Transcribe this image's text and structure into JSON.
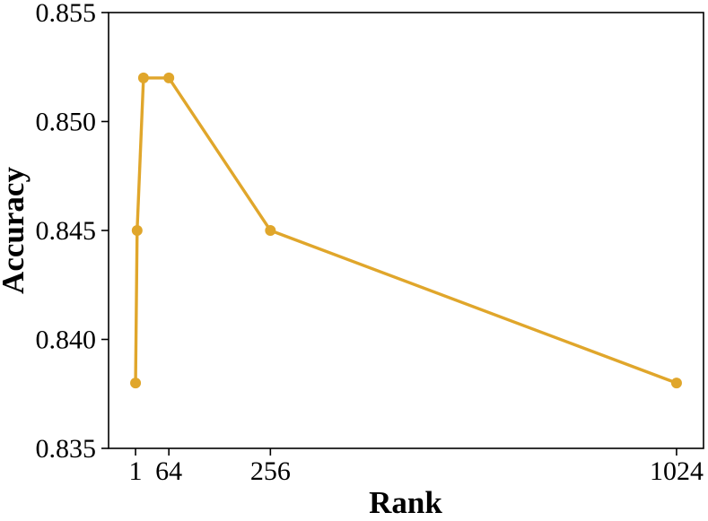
{
  "figure": {
    "background_color": "#ffffff",
    "frame_color": "#000000"
  },
  "chart_data": {
    "type": "line",
    "title": "",
    "xlabel": "Rank",
    "ylabel": "Accuracy",
    "x": [
      1,
      4,
      16,
      64,
      256,
      1024
    ],
    "y": [
      0.838,
      0.845,
      0.852,
      0.852,
      0.845,
      0.838
    ],
    "series": [
      {
        "name": "accuracy",
        "x": [
          1,
          4,
          16,
          64,
          256,
          1024
        ],
        "values": [
          0.838,
          0.845,
          0.852,
          0.852,
          0.845,
          0.838
        ]
      }
    ],
    "xticks": [
      1,
      64,
      256,
      1024
    ],
    "xtick_labels": [
      "1",
      "64",
      "256",
      "1024"
    ],
    "yticks": [
      0.835,
      0.84,
      0.845,
      0.85,
      0.855
    ],
    "ytick_labels": [
      "0.835",
      "0.840",
      "0.845",
      "0.850",
      "0.855"
    ],
    "xlim": [
      -50,
      1075
    ],
    "ylim": [
      0.835,
      0.855
    ],
    "x_scale": "linear",
    "grid": false,
    "legend": null,
    "line_color": "#E0A62B",
    "marker": "circle",
    "marker_size": 6,
    "line_width": 3.4,
    "frame": "box"
  }
}
